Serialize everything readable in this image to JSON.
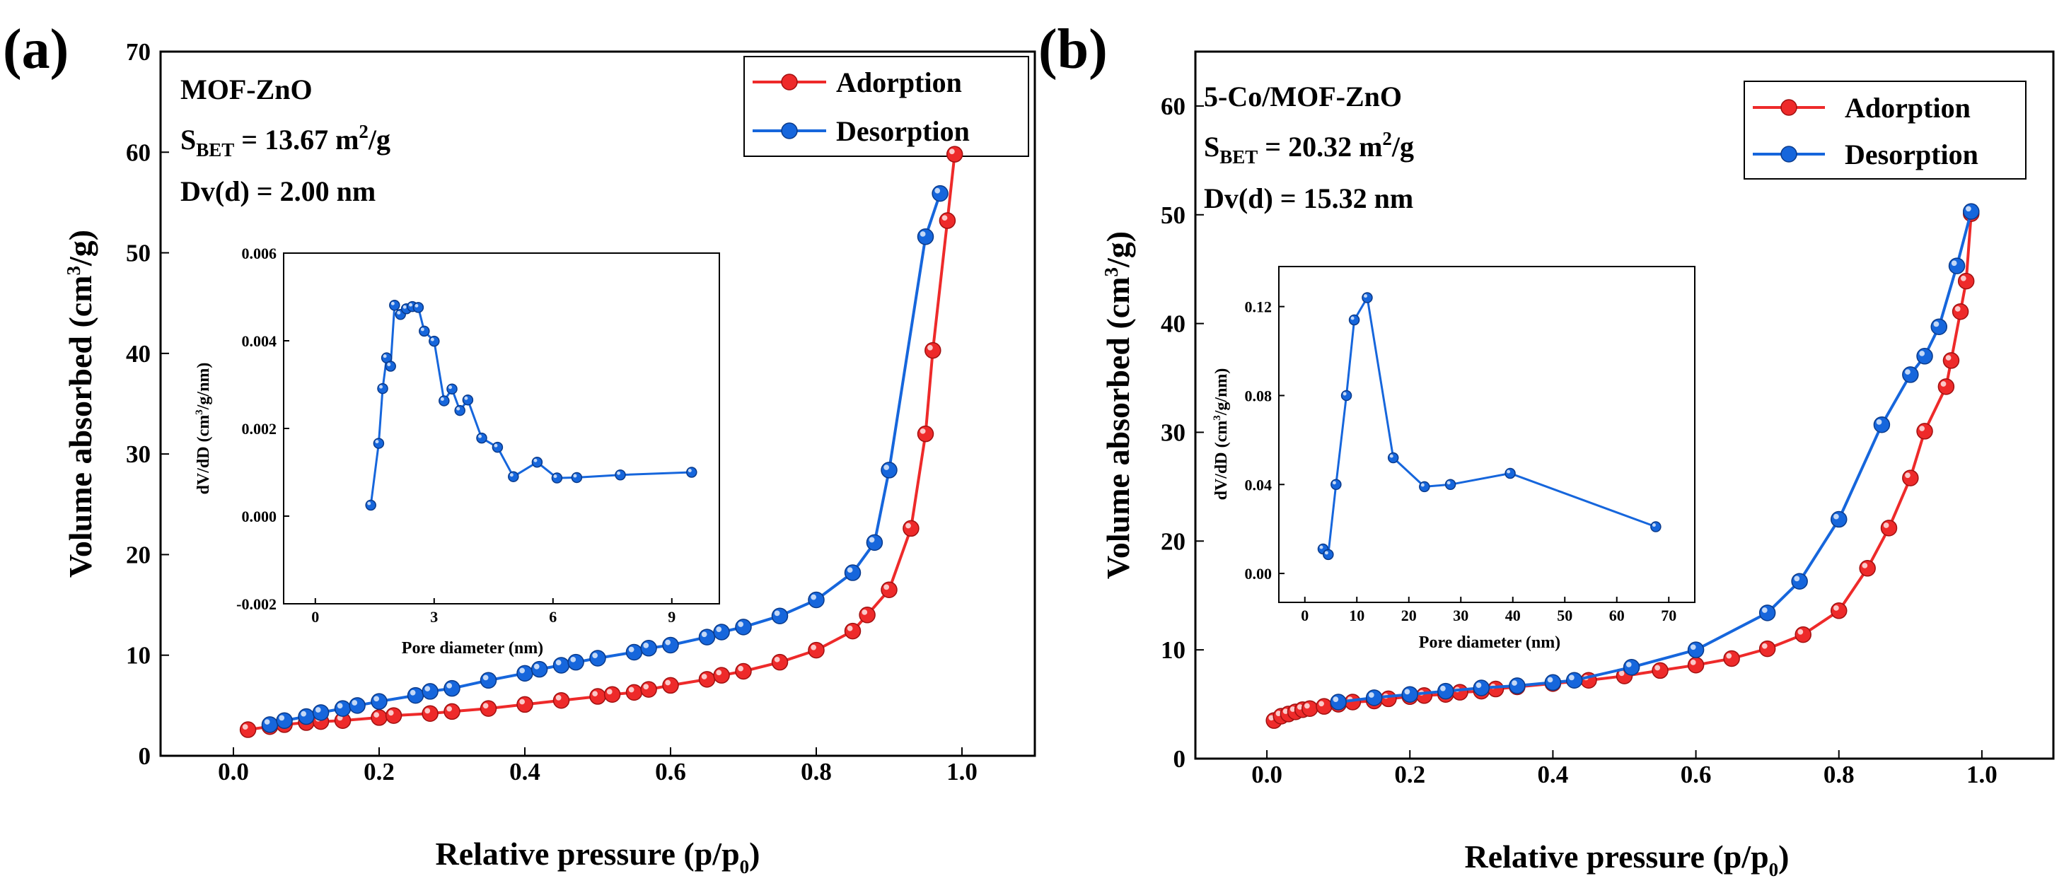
{
  "colors": {
    "adsorption": "#ee2a2a",
    "desorption": "#1666dc"
  },
  "chart_data": [
    {
      "type": "line",
      "panel_label": "(a)",
      "annotations": {
        "sample": "MOF-ZnO",
        "sbet_prefix": "S",
        "sbet_sub": "BET",
        "sbet_value": " = 13.67 m",
        "sbet_sup": "2",
        "sbet_unit": "/g",
        "dv": "Dv(d) = 2.00 nm"
      },
      "xlabel_main": "Relative pressure (p/p",
      "xlabel_sub": "0",
      "xlabel_tail": ")",
      "ylabel_main": "Volume absorbed (cm",
      "ylabel_sup": "3",
      "ylabel_tail": "/g)",
      "xlim": [
        -0.1,
        1.1
      ],
      "ylim": [
        0,
        70
      ],
      "xticks": [
        0.0,
        0.2,
        0.4,
        0.6,
        0.8,
        1.0
      ],
      "xtick_labels": [
        "0.0",
        "0.2",
        "0.4",
        "0.6",
        "0.8",
        "1.0"
      ],
      "yticks": [
        0,
        10,
        20,
        30,
        40,
        50,
        60,
        70
      ],
      "ytick_labels": [
        "0",
        "10",
        "20",
        "30",
        "40",
        "50",
        "60",
        "70"
      ],
      "legend": [
        "Adorption",
        "Desorption"
      ],
      "series": [
        {
          "name": "Adorption",
          "x": [
            0.02,
            0.05,
            0.07,
            0.1,
            0.12,
            0.15,
            0.2,
            0.22,
            0.27,
            0.3,
            0.35,
            0.4,
            0.45,
            0.5,
            0.52,
            0.55,
            0.57,
            0.6,
            0.65,
            0.67,
            0.7,
            0.75,
            0.8,
            0.85,
            0.87,
            0.9,
            0.93,
            0.95,
            0.96,
            0.98,
            0.99
          ],
          "y": [
            2.6,
            2.9,
            3.1,
            3.3,
            3.4,
            3.5,
            3.8,
            4.0,
            4.2,
            4.4,
            4.7,
            5.1,
            5.5,
            5.9,
            6.1,
            6.3,
            6.6,
            7.0,
            7.6,
            8.0,
            8.4,
            9.3,
            10.5,
            12.4,
            14.0,
            16.5,
            22.6,
            32.0,
            40.3,
            53.2,
            59.8
          ]
        },
        {
          "name": "Desorption",
          "x": [
            0.05,
            0.07,
            0.1,
            0.12,
            0.15,
            0.17,
            0.2,
            0.25,
            0.27,
            0.3,
            0.35,
            0.4,
            0.42,
            0.45,
            0.47,
            0.5,
            0.55,
            0.57,
            0.6,
            0.65,
            0.67,
            0.7,
            0.75,
            0.8,
            0.85,
            0.88,
            0.9,
            0.95,
            0.97
          ],
          "y": [
            3.1,
            3.5,
            3.9,
            4.3,
            4.7,
            5.0,
            5.4,
            6.0,
            6.4,
            6.7,
            7.5,
            8.2,
            8.6,
            9.0,
            9.3,
            9.7,
            10.3,
            10.7,
            11.0,
            11.8,
            12.3,
            12.8,
            13.9,
            15.5,
            18.2,
            21.2,
            28.4,
            51.6,
            55.9
          ]
        }
      ],
      "inset": {
        "xlabel": "Pore diameter (nm)",
        "ylabel_a": "dV/dD (cm",
        "ylabel_sup": "3",
        "ylabel_b": "/g/nm)",
        "xlim": [
          -0.8,
          10.2
        ],
        "ylim": [
          -0.002,
          0.006
        ],
        "xticks": [
          0,
          3,
          6,
          9
        ],
        "xtick_labels": [
          "0",
          "3",
          "6",
          "9"
        ],
        "yticks": [
          -0.002,
          0.0,
          0.002,
          0.004,
          0.006
        ],
        "ytick_labels": [
          "-0.002",
          "0.000",
          "0.002",
          "0.004",
          "0.006"
        ],
        "x": [
          1.4,
          1.6,
          1.7,
          1.8,
          1.9,
          2.0,
          2.15,
          2.3,
          2.45,
          2.6,
          2.75,
          3.0,
          3.25,
          3.45,
          3.65,
          3.85,
          4.2,
          4.6,
          5.0,
          5.6,
          6.1,
          6.6,
          7.7,
          9.5
        ],
        "y": [
          0.00025,
          0.00166,
          0.00291,
          0.00361,
          0.00342,
          0.00481,
          0.0046,
          0.00473,
          0.00478,
          0.00476,
          0.00422,
          0.00399,
          0.00263,
          0.0029,
          0.00241,
          0.00265,
          0.00178,
          0.00157,
          0.0009,
          0.00123,
          0.00087,
          0.00088,
          0.00094,
          0.001
        ]
      }
    },
    {
      "type": "line",
      "panel_label": "(b)",
      "annotations": {
        "sample": "5-Co/MOF-ZnO",
        "sbet_prefix": "S",
        "sbet_sub": "BET",
        "sbet_value": " = 20.32 m",
        "sbet_sup": "2",
        "sbet_unit": "/g",
        "dv": "Dv(d) = 15.32 nm"
      },
      "xlabel_main": "Relative pressure (p/p",
      "xlabel_sub": "0",
      "xlabel_tail": ")",
      "ylabel_main": "Volume absorbed (cm",
      "ylabel_sup": "3",
      "ylabel_tail": "/g)",
      "xlim": [
        -0.1,
        1.1
      ],
      "ylim": [
        0,
        65
      ],
      "xticks": [
        0.0,
        0.2,
        0.4,
        0.6,
        0.8,
        1.0
      ],
      "xtick_labels": [
        "0.0",
        "0.2",
        "0.4",
        "0.6",
        "0.8",
        "1.0"
      ],
      "yticks": [
        0,
        10,
        20,
        30,
        40,
        50,
        60
      ],
      "ytick_labels": [
        "0",
        "10",
        "20",
        "30",
        "40",
        "50",
        "60"
      ],
      "legend": [
        "Adorption",
        "Desorption"
      ],
      "series": [
        {
          "name": "Adorption",
          "x": [
            0.01,
            0.02,
            0.03,
            0.04,
            0.05,
            0.06,
            0.08,
            0.1,
            0.12,
            0.15,
            0.17,
            0.2,
            0.22,
            0.25,
            0.27,
            0.3,
            0.32,
            0.35,
            0.4,
            0.45,
            0.5,
            0.55,
            0.6,
            0.65,
            0.7,
            0.75,
            0.8,
            0.84,
            0.87,
            0.9,
            0.92,
            0.95,
            0.957,
            0.97,
            0.978,
            0.985
          ],
          "y": [
            3.5,
            3.9,
            4.1,
            4.3,
            4.5,
            4.6,
            4.8,
            5.0,
            5.2,
            5.3,
            5.5,
            5.7,
            5.8,
            5.9,
            6.1,
            6.2,
            6.4,
            6.6,
            6.9,
            7.2,
            7.6,
            8.1,
            8.6,
            9.2,
            10.1,
            11.4,
            13.6,
            17.5,
            21.2,
            25.8,
            30.1,
            34.2,
            36.6,
            41.1,
            43.9,
            50.1
          ]
        },
        {
          "name": "Desorption",
          "x": [
            0.1,
            0.15,
            0.2,
            0.25,
            0.3,
            0.35,
            0.4,
            0.43,
            0.51,
            0.6,
            0.7,
            0.745,
            0.8,
            0.86,
            0.9,
            0.92,
            0.94,
            0.965,
            0.985
          ],
          "y": [
            5.2,
            5.6,
            5.9,
            6.2,
            6.5,
            6.7,
            7.0,
            7.2,
            8.4,
            10.0,
            13.4,
            16.3,
            22.0,
            30.7,
            35.3,
            37.0,
            39.7,
            45.3,
            50.3
          ]
        }
      ],
      "inset": {
        "xlabel": "Pore diameter (nm)",
        "ylabel_a": "dV/dD (cm",
        "ylabel_sup": "3",
        "ylabel_b": "/g/nm)",
        "xlim": [
          -5,
          75
        ],
        "ylim": [
          -0.013,
          0.138
        ],
        "xticks": [
          0,
          10,
          20,
          30,
          40,
          50,
          60,
          70
        ],
        "xtick_labels": [
          "0",
          "10",
          "20",
          "30",
          "40",
          "50",
          "60",
          "70"
        ],
        "yticks": [
          0.0,
          0.04,
          0.08,
          0.12
        ],
        "ytick_labels": [
          "0.00",
          "0.04",
          "0.08",
          "0.12"
        ],
        "x": [
          3.5,
          4.5,
          6,
          8,
          9.5,
          12,
          17,
          23,
          28,
          39.5,
          67.5
        ],
        "y": [
          0.011,
          0.0085,
          0.04,
          0.08,
          0.114,
          0.124,
          0.052,
          0.039,
          0.04,
          0.045,
          0.021
        ]
      }
    }
  ]
}
